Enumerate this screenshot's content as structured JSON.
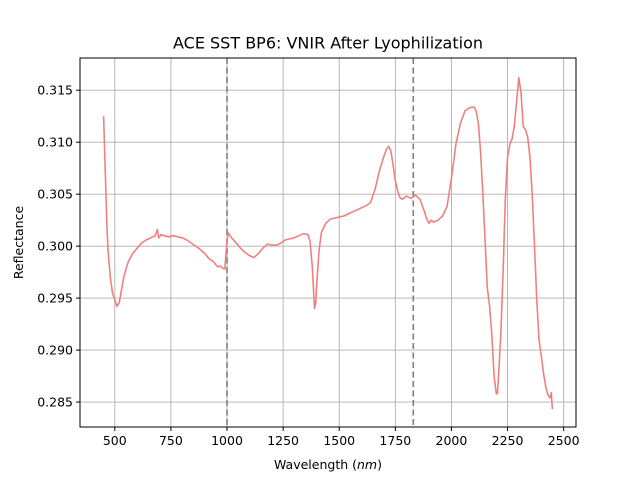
{
  "chart_data": {
    "type": "line",
    "title": "ACE SST BP6: VNIR After Lyophilization",
    "xlabel_main": "Wavelength (",
    "xlabel_unit": "nm",
    "xlabel_close": ")",
    "ylabel": "Reflectance",
    "xlim": [
      345,
      2555
    ],
    "ylim": [
      0.2826,
      0.3181
    ],
    "xticks": [
      500,
      750,
      1000,
      1250,
      1500,
      1750,
      2000,
      2250,
      2500
    ],
    "yticks": [
      0.285,
      0.29,
      0.295,
      0.3,
      0.305,
      0.31,
      0.315
    ],
    "ytick_labels": [
      "0.285",
      "0.290",
      "0.295",
      "0.300",
      "0.305",
      "0.310",
      "0.315"
    ],
    "grid": true,
    "vertical_lines": [
      1000,
      1830
    ],
    "colors": {
      "series": "#f08080",
      "vertical_lines": "#7f7f7f"
    },
    "series": [
      {
        "x": [
          450,
          455,
          460,
          465,
          470,
          480,
          490,
          500,
          510,
          520,
          530,
          540,
          550,
          560,
          580,
          600,
          620,
          640,
          660,
          680,
          690,
          695,
          700,
          705,
          720,
          740,
          760,
          780,
          800,
          820,
          840,
          860,
          880,
          900,
          920,
          940,
          950,
          960,
          970,
          980,
          990,
          1000,
          1005,
          1010,
          1020,
          1030,
          1040,
          1050,
          1060,
          1080,
          1100,
          1120,
          1140,
          1160,
          1180,
          1200,
          1220,
          1240,
          1260,
          1280,
          1300,
          1320,
          1340,
          1360,
          1370,
          1380,
          1385,
          1390,
          1395,
          1400,
          1410,
          1420,
          1440,
          1460,
          1480,
          1500,
          1520,
          1540,
          1560,
          1580,
          1600,
          1620,
          1640,
          1660,
          1680,
          1700,
          1710,
          1720,
          1730,
          1740,
          1750,
          1760,
          1770,
          1780,
          1800,
          1820,
          1840,
          1850,
          1860,
          1870,
          1880,
          1890,
          1900,
          1910,
          1920,
          1940,
          1960,
          1980,
          2000,
          2020,
          2040,
          2060,
          2080,
          2100,
          2110,
          2120,
          2130,
          2140,
          2150,
          2160,
          2170,
          2180,
          2190,
          2200,
          2205,
          2210,
          2220,
          2230,
          2240,
          2250,
          2260,
          2270,
          2280,
          2290,
          2300,
          2310,
          2320,
          2330,
          2340,
          2350,
          2360,
          2370,
          2380,
          2390,
          2400,
          2410,
          2420,
          2430,
          2440,
          2445,
          2450
        ],
        "y": [
          0.3125,
          0.309,
          0.3055,
          0.302,
          0.2995,
          0.297,
          0.2955,
          0.2948,
          0.2942,
          0.2946,
          0.2958,
          0.297,
          0.2978,
          0.2985,
          0.2993,
          0.2998,
          0.3003,
          0.3006,
          0.3008,
          0.301,
          0.3016,
          0.3008,
          0.3009,
          0.3011,
          0.301,
          0.3009,
          0.301,
          0.3009,
          0.3008,
          0.3006,
          0.3003,
          0.3,
          0.2997,
          0.2993,
          0.2988,
          0.2985,
          0.2982,
          0.298,
          0.2981,
          0.2979,
          0.2978,
          0.3005,
          0.3013,
          0.3011,
          0.3008,
          0.3006,
          0.3003,
          0.3001,
          0.2998,
          0.2994,
          0.2991,
          0.2989,
          0.2993,
          0.2998,
          0.3002,
          0.3001,
          0.3001,
          0.3003,
          0.3006,
          0.3007,
          0.3008,
          0.301,
          0.3012,
          0.3011,
          0.3005,
          0.298,
          0.296,
          0.294,
          0.2945,
          0.2965,
          0.2995,
          0.3013,
          0.3022,
          0.3026,
          0.3027,
          0.3028,
          0.3029,
          0.3031,
          0.3033,
          0.3035,
          0.3037,
          0.3039,
          0.3042,
          0.3055,
          0.3073,
          0.3087,
          0.3093,
          0.3096,
          0.3092,
          0.3078,
          0.3063,
          0.3053,
          0.3047,
          0.3045,
          0.3048,
          0.3046,
          0.3049,
          0.3047,
          0.3045,
          0.3039,
          0.3033,
          0.3026,
          0.3022,
          0.3025,
          0.3023,
          0.3025,
          0.3029,
          0.3038,
          0.3065,
          0.3098,
          0.3118,
          0.313,
          0.3133,
          0.3134,
          0.313,
          0.3118,
          0.309,
          0.305,
          0.3005,
          0.296,
          0.2942,
          0.2915,
          0.2875,
          0.2858,
          0.2858,
          0.2876,
          0.2915,
          0.2975,
          0.3045,
          0.3085,
          0.3098,
          0.3103,
          0.3115,
          0.3138,
          0.3162,
          0.3148,
          0.3115,
          0.3112,
          0.3105,
          0.3085,
          0.305,
          0.3,
          0.295,
          0.291,
          0.2895,
          0.2878,
          0.2865,
          0.2857,
          0.2854,
          0.2859,
          0.2843
        ]
      }
    ]
  }
}
